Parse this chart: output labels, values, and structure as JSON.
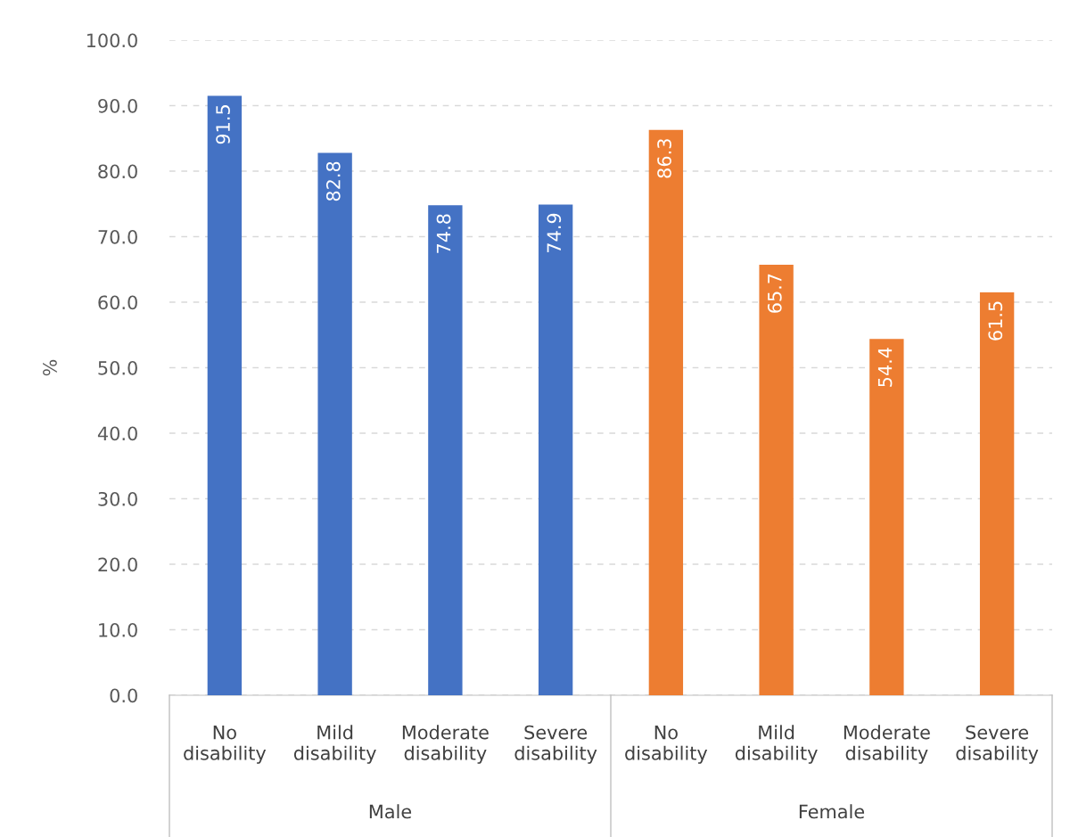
{
  "chart_data": {
    "type": "bar",
    "ylabel": "%",
    "categories": [
      "No\ndisability",
      "Mild\ndisability",
      "Moderate\ndisability",
      "Severe\ndisability",
      "No\ndisability",
      "Mild\ndisability",
      "Moderate\ndisability",
      "Severe\ndisability"
    ],
    "values": [
      91.5,
      82.8,
      74.8,
      74.9,
      86.3,
      65.7,
      54.4,
      61.5
    ],
    "colors": [
      "#4472c4",
      "#4472c4",
      "#4472c4",
      "#4472c4",
      "#ed7d31",
      "#ed7d31",
      "#ed7d31",
      "#ed7d31"
    ],
    "annotations": [
      "Male",
      "Female"
    ],
    "ylim": [
      0,
      100
    ],
    "yticks": [
      {
        "value": 0,
        "label": "0.0"
      },
      {
        "value": 10,
        "label": "10.0"
      },
      {
        "value": 20,
        "label": "20.0"
      },
      {
        "value": 30,
        "label": "30.0"
      },
      {
        "value": 40,
        "label": "40.0"
      },
      {
        "value": 50,
        "label": "50.0"
      },
      {
        "value": 60,
        "label": "60.0"
      },
      {
        "value": 70,
        "label": "70.0"
      },
      {
        "value": 80,
        "label": "80.0"
      },
      {
        "value": 90,
        "label": "90.0"
      },
      {
        "value": 100,
        "label": "100.0"
      }
    ],
    "grid": "y",
    "data_labels": true
  }
}
